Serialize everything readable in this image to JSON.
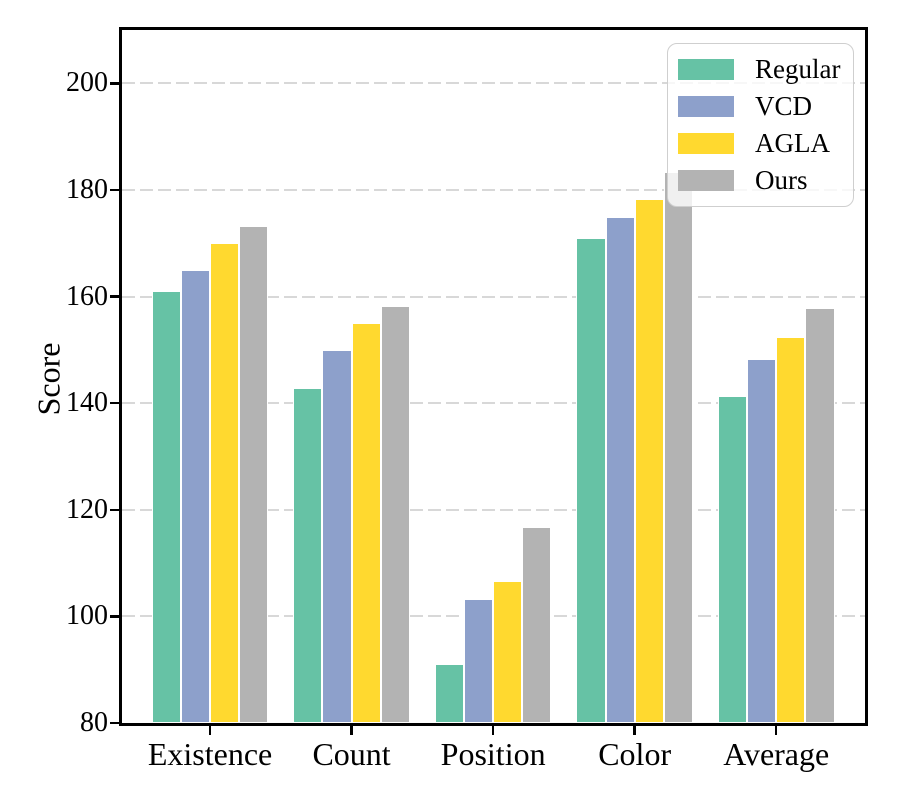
{
  "figure": {
    "background": "#ffffff",
    "text_color": "#000000"
  },
  "chart_data": {
    "type": "bar",
    "title": "",
    "xlabel": "",
    "ylabel": "Score",
    "categories": [
      "Existence",
      "Count",
      "Position",
      "Color",
      "Average"
    ],
    "series": [
      {
        "name": "Regular",
        "color": "#66c2a5",
        "values": [
          161.0,
          142.8,
          91.0,
          171.0,
          141.4
        ]
      },
      {
        "name": "VCD",
        "color": "#8da0cb",
        "values": [
          165.0,
          150.0,
          103.3,
          175.0,
          148.3
        ]
      },
      {
        "name": "AGLA",
        "color": "#ffd92f",
        "values": [
          170.0,
          155.0,
          106.7,
          178.3,
          152.5
        ]
      },
      {
        "name": "Ours",
        "color": "#b3b3b3",
        "values": [
          173.3,
          158.3,
          116.7,
          183.3,
          157.9
        ]
      }
    ],
    "ylim": [
      80,
      210
    ],
    "yticks": [
      80,
      100,
      120,
      140,
      160,
      180,
      200
    ],
    "grid": {
      "axis": "y",
      "style": "dashed",
      "color": "#d8d8d8"
    },
    "legend": {
      "position": "upper-right",
      "labels": [
        "Regular",
        "VCD",
        "AGLA",
        "Ours"
      ]
    },
    "bar_edge_color": "#ffffff",
    "spine_color": "#000000"
  }
}
